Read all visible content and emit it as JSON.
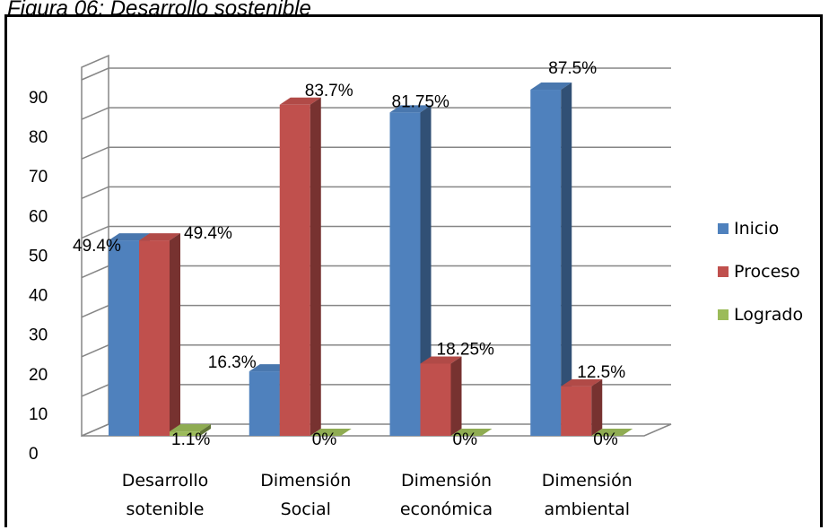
{
  "caption": "Figura 06: Desarrollo sostenible",
  "chart_data": {
    "type": "bar",
    "title": "",
    "categories": [
      [
        "Desarrollo",
        "sotenible"
      ],
      [
        "Dimensión",
        "Social"
      ],
      [
        "Dimensión",
        "económica"
      ],
      [
        "Dimensión",
        "ambiental"
      ]
    ],
    "series": [
      {
        "name": "Inicio",
        "color": "#4F81BD",
        "values": [
          49.4,
          16.3,
          81.75,
          87.5
        ],
        "labels": [
          "49.4%",
          "16.3%",
          "81.75%",
          "87.5%"
        ]
      },
      {
        "name": "Proceso",
        "color": "#C0504D",
        "values": [
          49.4,
          83.7,
          18.25,
          12.5
        ],
        "labels": [
          "49.4%",
          "83.7%",
          "18.25%",
          "12.5%"
        ]
      },
      {
        "name": "Logrado",
        "color": "#9BBB59",
        "values": [
          1.1,
          0,
          0,
          0
        ],
        "labels": [
          "1.1%",
          "0%",
          "0%",
          "0%"
        ]
      }
    ],
    "y_ticks": [
      "0",
      "10",
      "20",
      "30",
      "40",
      "50",
      "60",
      "70",
      "80",
      "90"
    ],
    "ylim": [
      0,
      90
    ],
    "grid": true,
    "legend": "right",
    "style": "3d-clustered-column"
  }
}
